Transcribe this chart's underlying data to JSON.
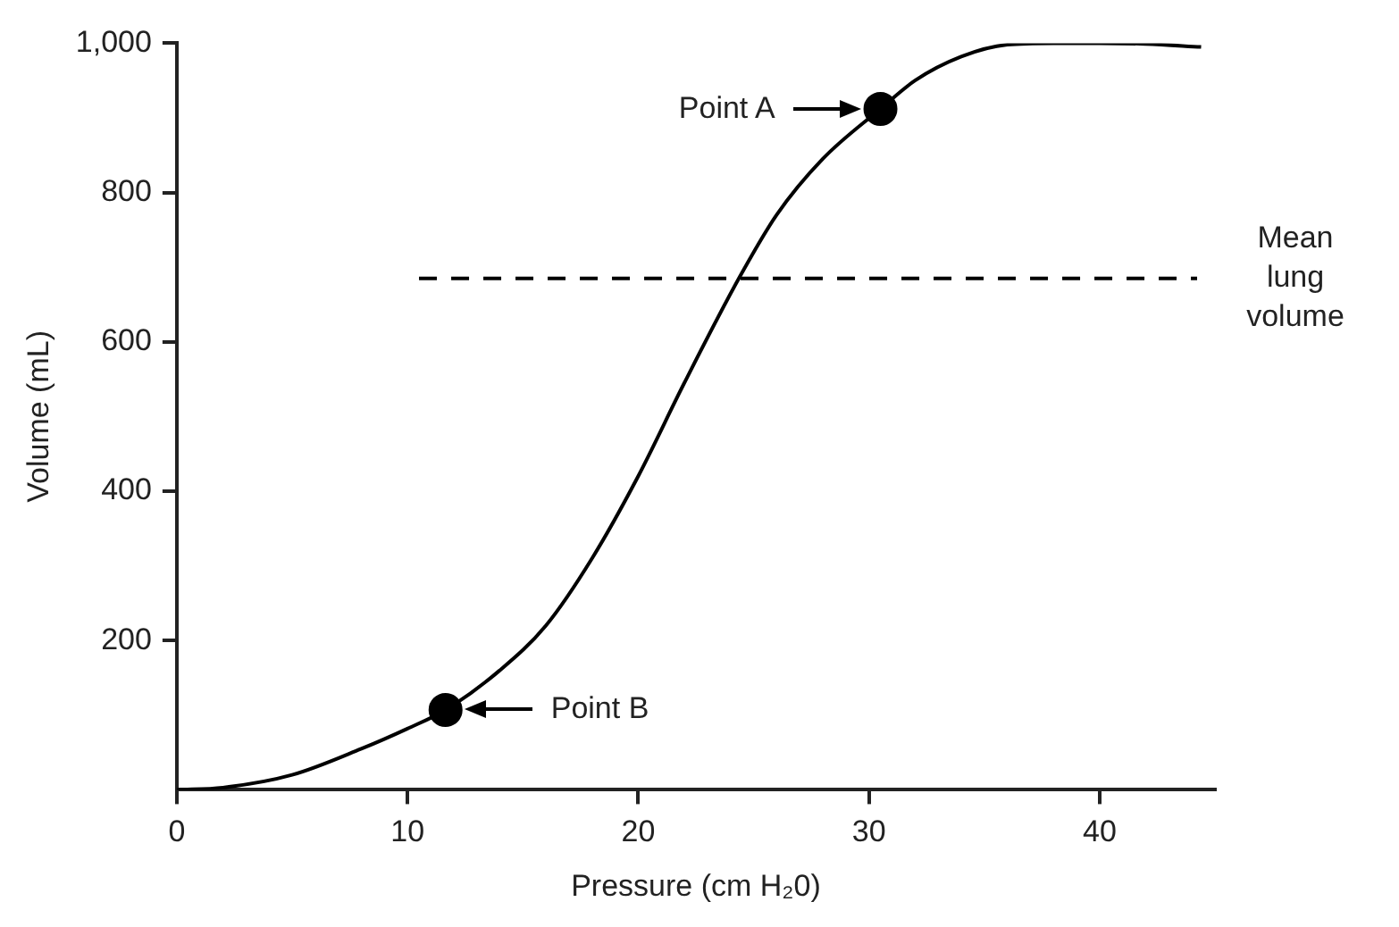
{
  "chart_data": {
    "type": "line",
    "xlabel": "Pressure (cm H₂0)",
    "ylabel": "Volume (mL)",
    "xlim": [
      0,
      45
    ],
    "xticks": [
      0,
      10,
      20,
      30,
      40
    ],
    "ylim": [
      0,
      1000
    ],
    "yticks": [
      200,
      400,
      600,
      800,
      {
        "value": 1000,
        "label": "1,000"
      }
    ],
    "grid": false,
    "legend": false,
    "line_style": "solid",
    "series": [
      {
        "color": "#000000",
        "x": [
          0,
          2,
          5,
          8,
          10,
          11.65,
          14,
          16,
          18,
          20,
          22,
          24.4,
          26,
          28,
          30.5,
          32,
          34,
          36,
          38,
          40,
          42,
          44.4
        ],
        "values": [
          0,
          3,
          20,
          55,
          82,
          107,
          160,
          220,
          310,
          420,
          545,
          687,
          770,
          845,
          912,
          950,
          982,
          998,
          1000,
          1000,
          999,
          995
        ]
      },
      {
        "type": "scatter",
        "color": "#000000",
        "x": [
          30.5,
          11.65
        ],
        "values": [
          912,
          107
        ]
      }
    ],
    "ref_lines": [
      {
        "axis": "y",
        "value": 685,
        "label": "Mean lung volume",
        "line_style": "dashed",
        "color": "#000000"
      }
    ],
    "annotations": [
      "Point A",
      "Point B"
    ]
  }
}
